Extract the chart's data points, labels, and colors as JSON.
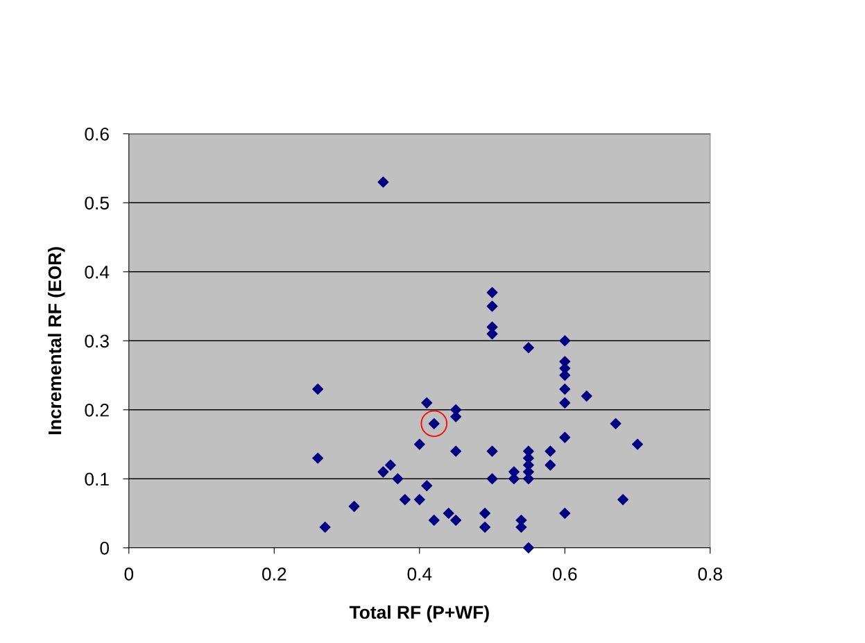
{
  "chart_data": {
    "type": "scatter",
    "xlabel": "Total RF (P+WF)",
    "ylabel": "Incremental RF (EOR)",
    "xlim": [
      0,
      0.8
    ],
    "xticks": [
      0,
      0.2,
      0.4,
      0.6,
      0.8
    ],
    "ylim": [
      0,
      0.6
    ],
    "yticks": [
      0,
      0.1,
      0.2,
      0.3,
      0.4,
      0.5,
      0.6
    ],
    "grid": "y",
    "marker": "diamond",
    "series": [
      {
        "color": "#000080",
        "x": [
          0.35,
          0.26,
          0.26,
          0.27,
          0.31,
          0.35,
          0.36,
          0.37,
          0.38,
          0.4,
          0.4,
          0.41,
          0.41,
          0.42,
          0.42,
          0.44,
          0.45,
          0.45,
          0.45,
          0.45,
          0.49,
          0.49,
          0.5,
          0.5,
          0.5,
          0.5,
          0.5,
          0.5,
          0.53,
          0.53,
          0.54,
          0.54,
          0.55,
          0.55,
          0.55,
          0.55,
          0.55,
          0.55,
          0.55,
          0.58,
          0.58,
          0.6,
          0.6,
          0.6,
          0.6,
          0.6,
          0.6,
          0.6,
          0.6,
          0.63,
          0.67,
          0.68,
          0.7
        ],
        "values": [
          0.53,
          0.23,
          0.13,
          0.03,
          0.06,
          0.11,
          0.12,
          0.1,
          0.07,
          0.15,
          0.07,
          0.21,
          0.09,
          0.18,
          0.04,
          0.05,
          0.2,
          0.19,
          0.14,
          0.04,
          0.05,
          0.03,
          0.37,
          0.35,
          0.32,
          0.31,
          0.14,
          0.1,
          0.11,
          0.1,
          0.04,
          0.03,
          0.29,
          0.14,
          0.13,
          0.12,
          0.11,
          0.1,
          0.0,
          0.14,
          0.12,
          0.3,
          0.27,
          0.26,
          0.25,
          0.23,
          0.21,
          0.16,
          0.05,
          0.22,
          0.18,
          0.07,
          0.15
        ]
      },
      {
        "color": "#ff0000",
        "marker": "circle",
        "x": [
          0.42
        ],
        "values": [
          0.18
        ]
      }
    ]
  }
}
